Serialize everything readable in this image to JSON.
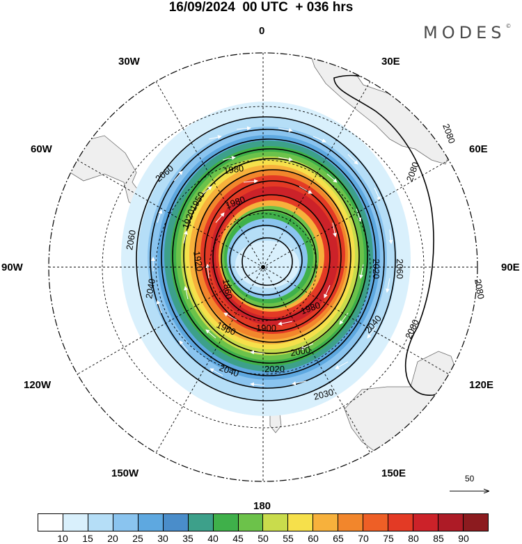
{
  "header": {
    "title": "16/09/2024  00 UTC  + 036 hrs",
    "brand": "MODES",
    "brand_mark": "©"
  },
  "map": {
    "projection": "south-polar-stereographic",
    "longitude_labels": {
      "top": "0",
      "top_right": "30E",
      "upper_right": "60E",
      "right": "90E",
      "lower_right": "120E",
      "bottom_right": "150E",
      "bottom": "180",
      "bottom_left": "150W",
      "lower_left": "120W",
      "left": "90W",
      "upper_left": "60W",
      "top_left": "30W"
    },
    "contour_labels": [
      "1980",
      "2060",
      "1920",
      "1950",
      "1980",
      "1860",
      "1920",
      "2060",
      "2040",
      "1960",
      "1900",
      "1980",
      "2000",
      "2020",
      "2040",
      "2030",
      "2040",
      "2020",
      "2060",
      "2080",
      "2080",
      "2080",
      "2080"
    ],
    "wind_vector_reference": "50",
    "colors": {
      "land": "#efefef",
      "contour": "#000000",
      "vectors": "#ffffff",
      "graticule": "#000000"
    }
  },
  "colorbar": {
    "labels": [
      "10",
      "15",
      "20",
      "25",
      "30",
      "35",
      "40",
      "45",
      "50",
      "55",
      "60",
      "65",
      "70",
      "75",
      "80",
      "85",
      "90"
    ],
    "colors": [
      "#ffffff",
      "#d9f0fc",
      "#b5def7",
      "#8ac4ef",
      "#5ea8e0",
      "#4a8dca",
      "#3da08a",
      "#3fb04a",
      "#6cc24a",
      "#c9dc4c",
      "#f6e04b",
      "#f7b13c",
      "#f2862c",
      "#ee5f26",
      "#e33a25",
      "#cc2229",
      "#ad1b26",
      "#8c1b1f"
    ]
  }
}
